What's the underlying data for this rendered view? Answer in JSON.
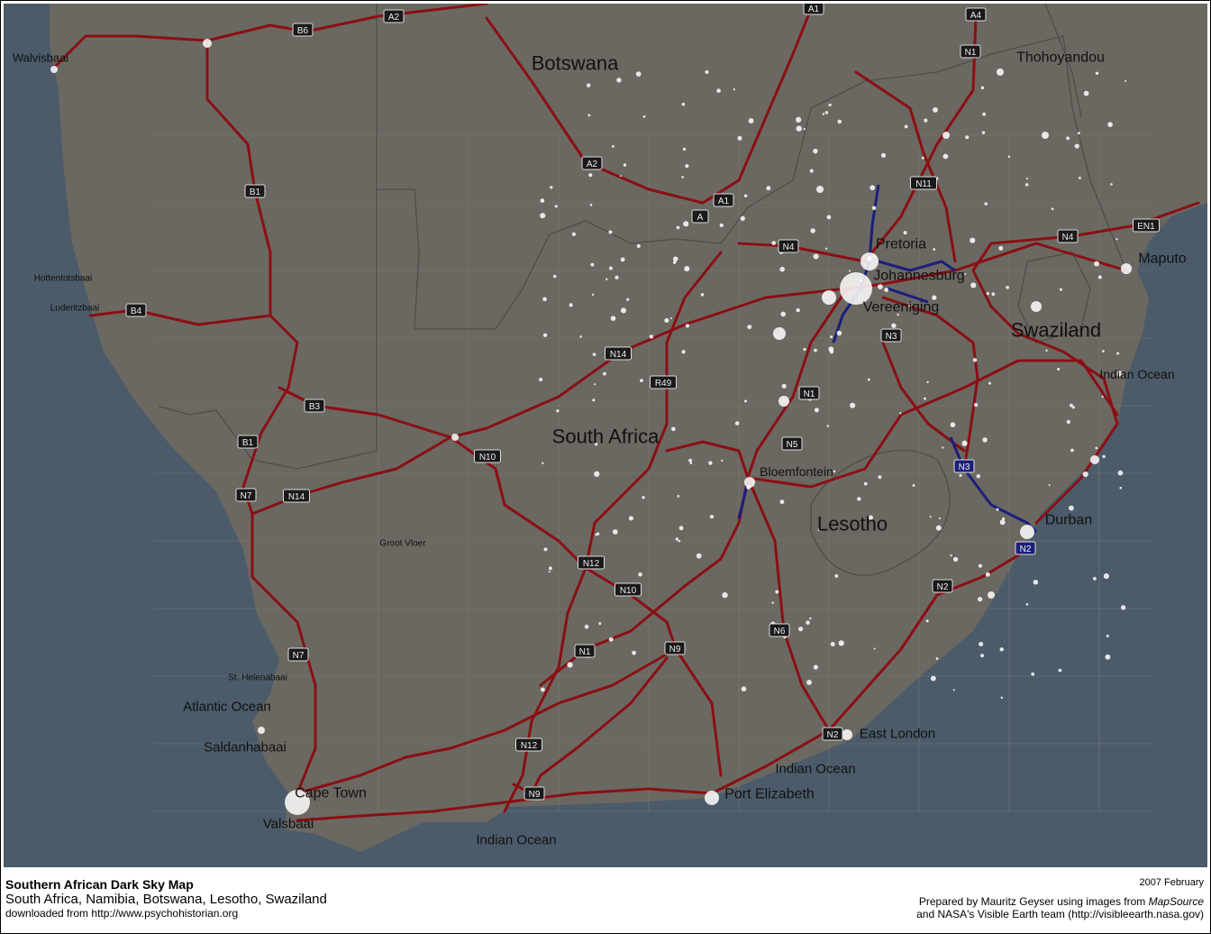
{
  "map": {
    "colors": {
      "land": "#6b6862",
      "ocean": "#4b5b69",
      "road": "#8a0f14",
      "highway": "#1b1f7a",
      "lights": "#ffffff"
    },
    "labels": [
      "Walvisbaai",
      "Botswana",
      "Thohoyandou",
      "Pretoria",
      "Johannesburg",
      "Vereeniging",
      "Maputo",
      "Swaziland",
      "Indian Ocean",
      "South Africa",
      "Bloemfontein",
      "Lesotho",
      "Durban",
      "Hottentotsbaai",
      "Luderitzbaai",
      "Groot Vloer",
      "St. Helenabaai",
      "Atlantic Ocean",
      "Saldanhabaai",
      "Cape Town",
      "Valsbaai",
      "Indian Ocean",
      "Port Elizabeth",
      "Indian Ocean",
      "East London"
    ],
    "shields": [
      "A2",
      "B6",
      "A1",
      "A4",
      "N1",
      "B1",
      "A2",
      "A1",
      "A",
      "N11",
      "N4",
      "N4",
      "EN1",
      "B4",
      "N14",
      "R49",
      "N3",
      "N1",
      "B3",
      "B1",
      "N10",
      "N5",
      "N3",
      "N7",
      "N14",
      "N12",
      "N10",
      "N2",
      "N2",
      "N6",
      "N1",
      "N9",
      "N7",
      "N12",
      "N9",
      "N2"
    ]
  },
  "footer": {
    "title": "Southern African Dark Sky Map",
    "subtitle": "South Africa, Namibia, Botswana, Lesotho, Swaziland",
    "source": "downloaded from http://www.psychohistorian.org",
    "date": "2007 February",
    "credit_pre": "Prepared by Mauritz Geyser using images from ",
    "credit_em": "MapSource",
    "credit_line2": "and NASA's Visible Earth team (http://visibleearth.nasa.gov)"
  }
}
